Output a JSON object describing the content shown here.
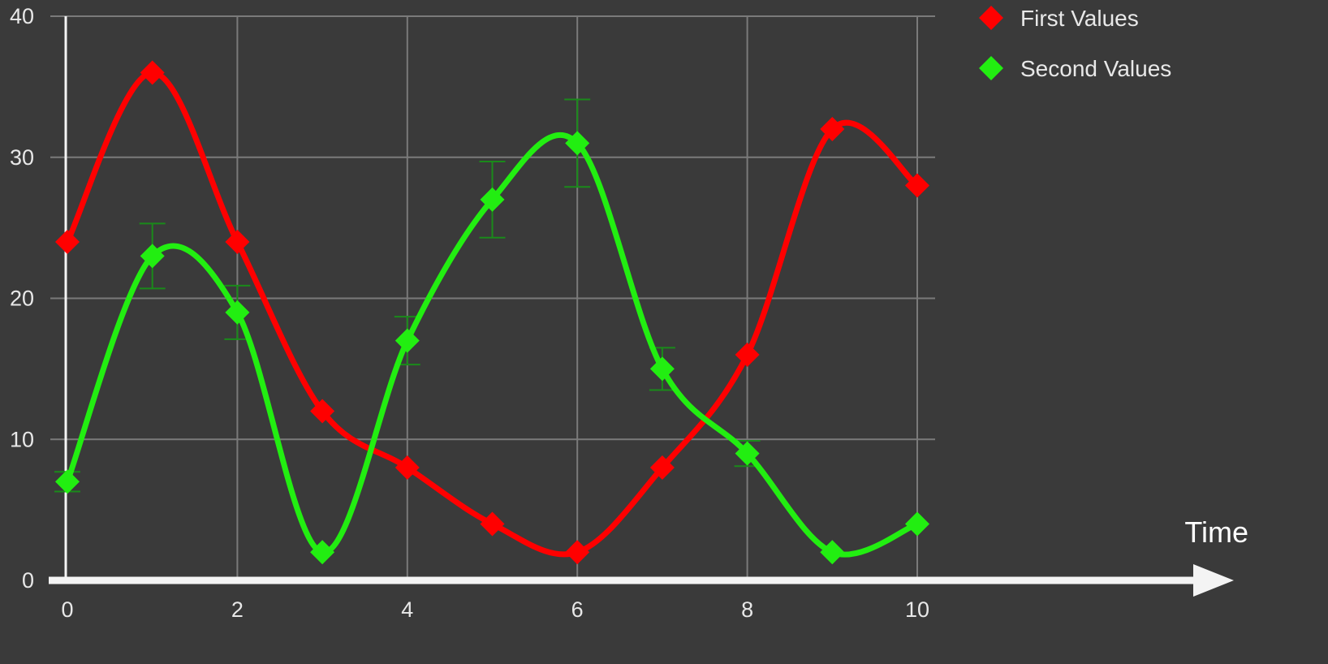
{
  "chart_data": {
    "type": "line",
    "x": [
      0,
      1,
      2,
      3,
      4,
      5,
      6,
      7,
      8,
      9,
      10
    ],
    "xticks": [
      "0",
      "2",
      "4",
      "6",
      "8",
      "10"
    ],
    "yticks": [
      "0",
      "10",
      "20",
      "30",
      "40"
    ],
    "xlim": [
      0,
      10
    ],
    "ylim": [
      0,
      40
    ],
    "xlabel": "Time",
    "ylabel": "",
    "grid": true,
    "curve": "smooth",
    "marker": "diamond",
    "legend_position": "top-right",
    "background_color": "#3a3a3a",
    "series": [
      {
        "name": "First Values",
        "color": "#ff0000",
        "values": [
          24,
          36,
          24,
          12,
          8,
          4,
          2,
          8,
          16,
          32,
          28
        ]
      },
      {
        "name": "Second Values",
        "color": "#22ee11",
        "values": [
          7,
          23,
          19,
          2,
          17,
          27,
          31,
          15,
          9,
          2,
          4
        ],
        "error_bars": [
          0.7,
          2.3,
          1.9,
          0,
          1.7,
          2.7,
          3.1,
          1.5,
          0.9,
          0,
          0
        ],
        "error_bar_color": "#1a8a1a"
      }
    ]
  }
}
